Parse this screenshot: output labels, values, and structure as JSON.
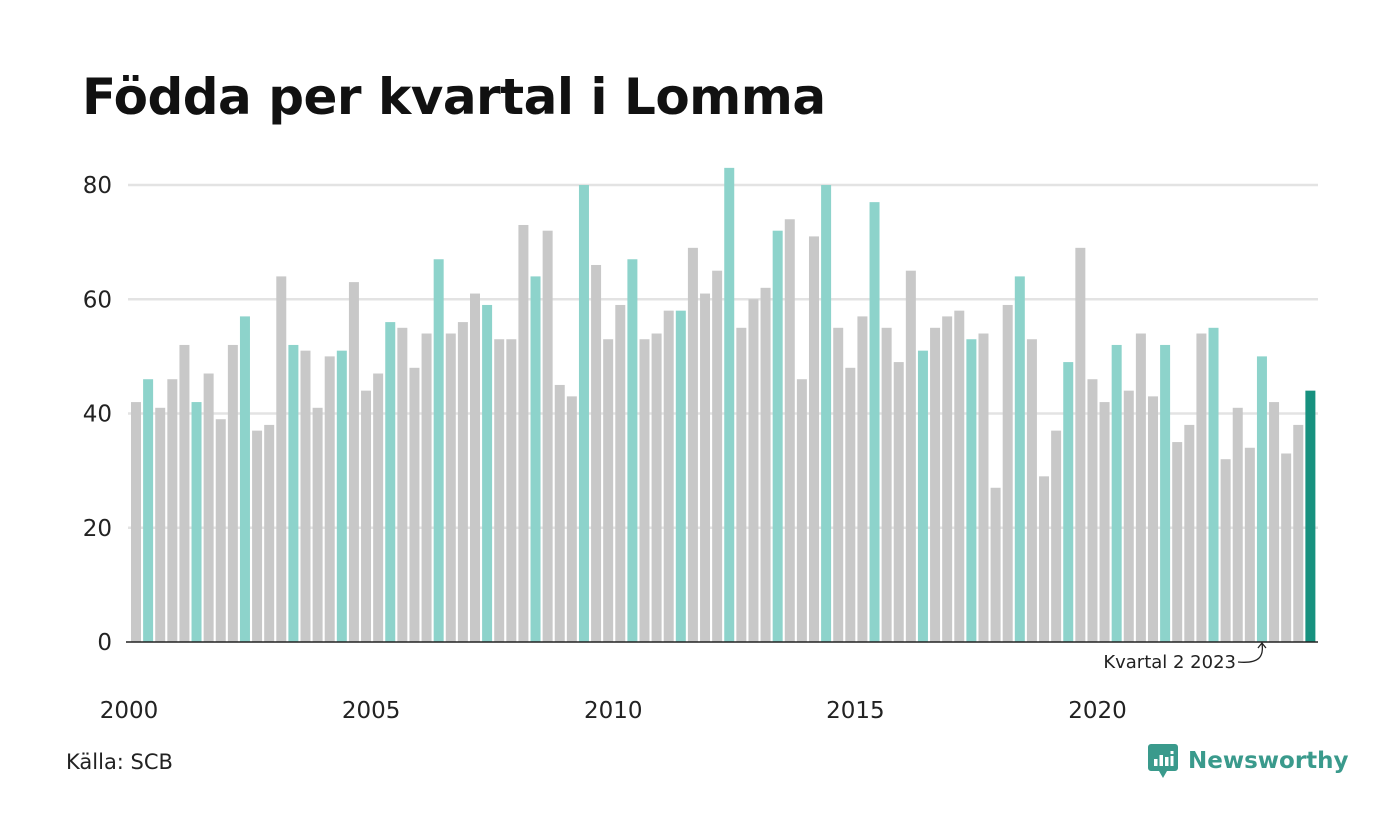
{
  "title": "Födda per kvartal i Lomma",
  "source": "Källa: SCB",
  "brand": "Newsworthy",
  "colors": {
    "default_bar": "#c8c8c8",
    "same_quarter_bar": "#8dd3cb",
    "latest_bar": "#17917f",
    "grid": "#e3e3e3",
    "axis": "#222222",
    "brand": "#3a9a8c"
  },
  "chart_data": {
    "type": "bar",
    "title": "Födda per kvartal i Lomma",
    "xlabel": "",
    "ylabel": "",
    "ylim": [
      0,
      85
    ],
    "yticks": [
      0,
      20,
      40,
      60,
      80
    ],
    "xtick_labels": [
      "2000",
      "2005",
      "2010",
      "2015",
      "2020"
    ],
    "start_year": 2000,
    "grid": true,
    "highlight_quarter": 2,
    "annotation": "Kvartal 2 2023",
    "values": [
      42,
      46,
      41,
      46,
      52,
      42,
      47,
      39,
      52,
      57,
      37,
      38,
      64,
      52,
      51,
      41,
      50,
      51,
      63,
      44,
      47,
      56,
      55,
      48,
      54,
      67,
      54,
      56,
      61,
      59,
      53,
      53,
      73,
      64,
      72,
      45,
      43,
      80,
      66,
      53,
      59,
      67,
      53,
      54,
      58,
      58,
      69,
      61,
      65,
      83,
      55,
      60,
      62,
      72,
      74,
      46,
      71,
      80,
      55,
      48,
      57,
      77,
      55,
      49,
      65,
      51,
      55,
      57,
      58,
      53,
      54,
      27,
      59,
      64,
      53,
      29,
      37,
      49,
      69,
      46,
      42,
      52,
      44,
      54,
      43,
      52,
      35,
      38,
      54,
      55,
      32,
      41,
      34,
      50,
      42,
      33,
      38,
      44
    ]
  }
}
